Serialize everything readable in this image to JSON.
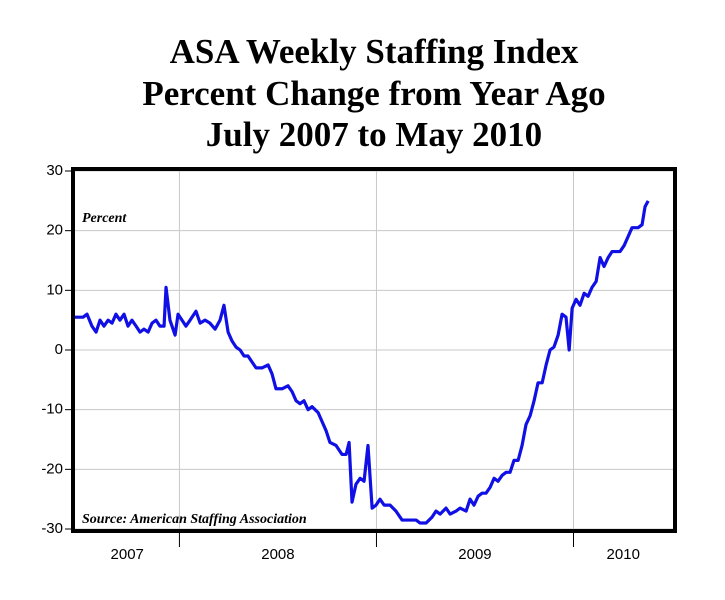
{
  "chart_data": {
    "type": "line",
    "title": [
      "ASA Weekly Staffing Index",
      "Percent Change from Year Ago",
      "July 2007 to May 2010"
    ],
    "annotations": {
      "unit": "Percent",
      "source": "Source: American Staffing Association"
    },
    "x_labels": [
      "2007",
      "2008",
      "2009",
      "2010"
    ],
    "xgrid": [
      2008,
      2009,
      2010
    ],
    "xlim": [
      2007.47,
      2010.505
    ],
    "ylim": [
      -30,
      30
    ],
    "yticks": [
      -30,
      -20,
      -10,
      0,
      10,
      20,
      30
    ],
    "grid": true,
    "series": [
      {
        "color": "#1010e6",
        "x": [
          2007.47,
          2007.511,
          2007.531,
          2007.556,
          2007.577,
          2007.597,
          2007.617,
          2007.638,
          2007.658,
          2007.678,
          2007.698,
          2007.719,
          2007.739,
          2007.759,
          2007.78,
          2007.8,
          2007.82,
          2007.841,
          2007.861,
          2007.881,
          2007.901,
          2007.922,
          2007.932,
          2007.952,
          2007.978,
          2007.993,
          2008.013,
          2008.033,
          2008.054,
          2008.084,
          2008.105,
          2008.13,
          2008.155,
          2008.181,
          2008.206,
          2008.226,
          2008.247,
          2008.267,
          2008.287,
          2008.308,
          2008.328,
          2008.348,
          2008.368,
          2008.389,
          2008.419,
          2008.45,
          2008.47,
          2008.49,
          2008.521,
          2008.551,
          2008.572,
          2008.592,
          2008.612,
          2008.632,
          2008.653,
          2008.673,
          2008.704,
          2008.724,
          2008.744,
          2008.764,
          2008.795,
          2008.825,
          2008.846,
          2008.861,
          2008.876,
          2008.896,
          2008.917,
          2008.937,
          2008.957,
          2008.978,
          2008.998,
          2009.018,
          2009.039,
          2009.069,
          2009.099,
          2009.13,
          2009.171,
          2009.201,
          2009.221,
          2009.252,
          2009.282,
          2009.302,
          2009.323,
          2009.353,
          2009.374,
          2009.404,
          2009.424,
          2009.455,
          2009.475,
          2009.495,
          2009.516,
          2009.536,
          2009.556,
          2009.577,
          2009.597,
          2009.617,
          2009.638,
          2009.658,
          2009.678,
          2009.698,
          2009.719,
          2009.739,
          2009.759,
          2009.78,
          2009.8,
          2009.82,
          2009.841,
          2009.861,
          2009.881,
          2009.901,
          2009.922,
          2009.942,
          2009.962,
          2009.978,
          2009.993,
          2010.013,
          2010.033,
          2010.054,
          2010.074,
          2010.094,
          2010.115,
          2010.135,
          2010.155,
          2010.176,
          2010.196,
          2010.236,
          2010.257,
          2010.277,
          2010.297,
          2010.328,
          2010.348,
          2010.363,
          2010.379
        ],
        "values": [
          5.5,
          5.5,
          6,
          4,
          3,
          5,
          4,
          5,
          4.5,
          6,
          5,
          6,
          4,
          5,
          4,
          3,
          3.5,
          3,
          4.5,
          5,
          4,
          4,
          10.5,
          5,
          2.5,
          6,
          5,
          4,
          5,
          6.5,
          4.5,
          5,
          4.5,
          3.5,
          5,
          7.5,
          3,
          1.5,
          0.5,
          0,
          -1,
          -1,
          -2,
          -3,
          -3,
          -2.5,
          -4,
          -6.5,
          -6.5,
          -6,
          -7,
          -8.5,
          -9,
          -8.5,
          -10,
          -9.5,
          -10.5,
          -12,
          -13.5,
          -15.5,
          -16,
          -17.5,
          -17.5,
          -15.5,
          -25.5,
          -22.5,
          -21.5,
          -22,
          -16,
          -26.5,
          -26,
          -25,
          -26,
          -26,
          -27,
          -28.5,
          -28.5,
          -28.5,
          -29,
          -29,
          -28,
          -27,
          -27.5,
          -26.5,
          -27.5,
          -27,
          -26.5,
          -27,
          -25,
          -26,
          -24.5,
          -24,
          -24,
          -23,
          -21.5,
          -22,
          -21,
          -20.5,
          -20.5,
          -18.5,
          -18.5,
          -16,
          -12.5,
          -11,
          -8.5,
          -5.5,
          -5.5,
          -2.5,
          0,
          0.5,
          2.5,
          6,
          5.5,
          0,
          7,
          8.5,
          7.5,
          9.5,
          9,
          10.5,
          11.5,
          15.5,
          14,
          15.5,
          16.5,
          16.5,
          17.5,
          19,
          20.5,
          20.5,
          21,
          24,
          25
        ]
      }
    ]
  }
}
